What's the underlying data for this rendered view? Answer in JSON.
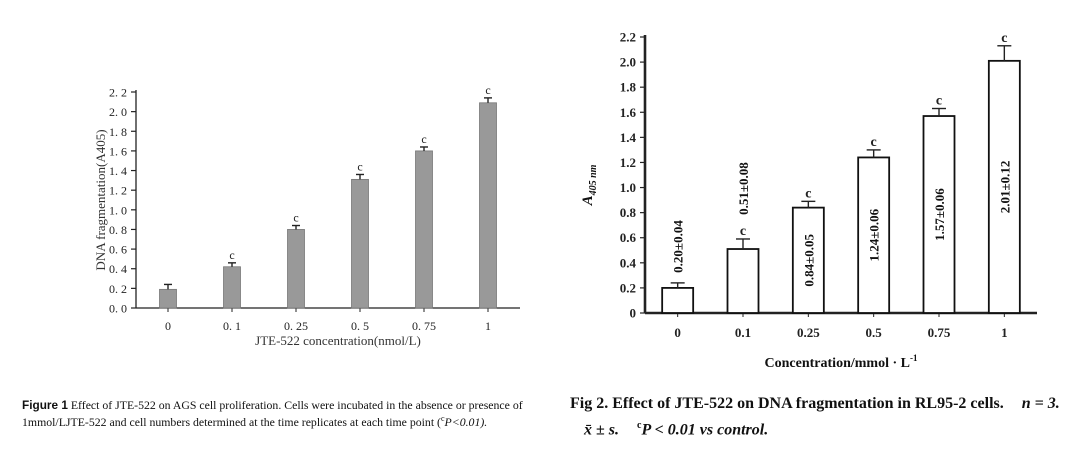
{
  "chart_data": [
    {
      "type": "bar",
      "categories": [
        "0",
        "0. 1",
        "0. 25",
        "0. 5",
        "0. 75",
        "1"
      ],
      "values": [
        0.19,
        0.42,
        0.8,
        1.31,
        1.6,
        2.09
      ],
      "errors": [
        0.05,
        0.04,
        0.04,
        0.05,
        0.04,
        0.05
      ],
      "sig_labels": [
        "",
        "c",
        "c",
        "c",
        "c",
        "c"
      ],
      "xlabel": "JTE-522 concentration(nmol/L)",
      "ylabel": "DNA fragmentation(A405)",
      "ylim": [
        0,
        2.2
      ],
      "yticks": [
        "0. 0",
        "0. 2",
        "0. 4",
        "0. 6",
        "0. 8",
        "1. 0",
        "1. 2",
        "1. 4",
        "1. 6",
        "1. 8",
        "2. 0",
        "2. 2"
      ],
      "bar_color": "#999999",
      "grid": false
    },
    {
      "type": "bar",
      "categories": [
        "0",
        "0.1",
        "0.25",
        "0.5",
        "0.75",
        "1"
      ],
      "values": [
        0.2,
        0.51,
        0.84,
        1.24,
        1.57,
        2.01
      ],
      "errors": [
        0.04,
        0.08,
        0.05,
        0.06,
        0.06,
        0.12
      ],
      "sig_labels": [
        "",
        "c",
        "c",
        "c",
        "c",
        "c"
      ],
      "value_labels": [
        "0.20±0.04",
        "0.51±0.08",
        "0.84±0.05",
        "1.24±0.06",
        "1.57±0.06",
        "2.01±0.12"
      ],
      "xlabel": "Concentration/mmol · L",
      "xlabel_sup": "-1",
      "ylabel": "A",
      "ylabel_sub": "405 nm",
      "ylim": [
        0,
        2.2
      ],
      "yticks": [
        "0",
        "0.2",
        "0.4",
        "0.6",
        "0.8",
        "1.0",
        "1.2",
        "1.4",
        "1.6",
        "1.8",
        "2.0",
        "2.2"
      ],
      "bar_color": "#ffffff",
      "grid": false
    }
  ],
  "captions": {
    "fig1": {
      "lead": "Figure 1",
      "text": "Effect of JTE-522 on AGS cell proliferation. Cells were incubated in the absence or presence of 1mmol/LJTE-522 and cell numbers determined at the time replicates at each time point (",
      "sup": "c",
      "tail": "P<0.01)."
    },
    "fig2": {
      "lead": "Fig 2.",
      "text": "Effect of JTE-522 on DNA fragmentation in RL95-2 cells.",
      "stats_n": "n = 3.",
      "stats_mean": "x̄ ± s.",
      "sup": "c",
      "tail": "P < 0.01 vs control."
    }
  }
}
